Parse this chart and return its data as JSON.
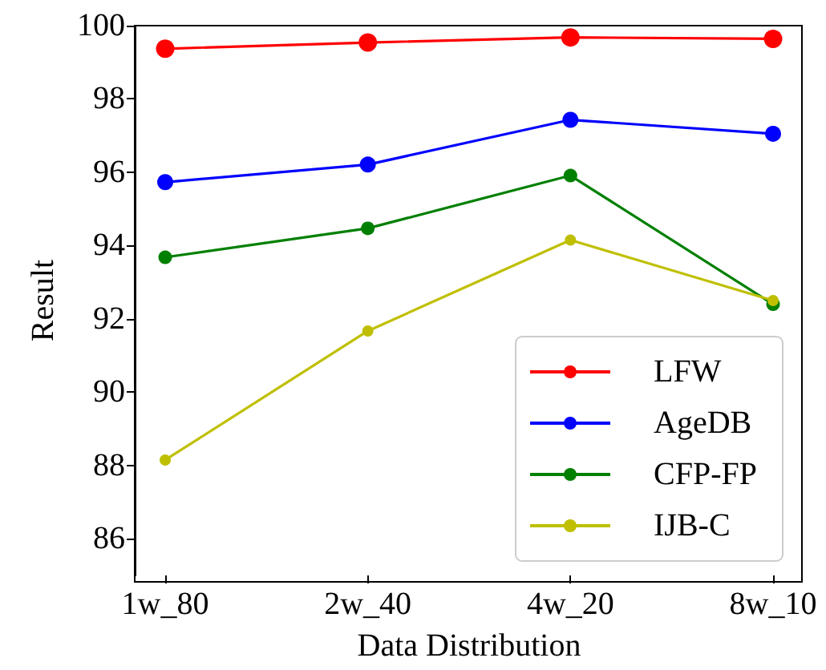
{
  "chart_data": {
    "type": "line",
    "xlabel": "Data Distribution",
    "ylabel": "Result",
    "categories": [
      "1w_80",
      "2w_40",
      "4w_20",
      "8w_10"
    ],
    "series": [
      {
        "name": "LFW",
        "color": "#ff0000",
        "values": [
          99.37,
          99.54,
          99.68,
          99.64
        ]
      },
      {
        "name": "AgeDB",
        "color": "#0000ff",
        "values": [
          95.73,
          96.21,
          97.43,
          97.05
        ]
      },
      {
        "name": "CFP-FP",
        "color": "#008000",
        "values": [
          93.68,
          94.47,
          95.91,
          92.4
        ]
      },
      {
        "name": "IJB-C",
        "color": "#bfbf00",
        "values": [
          88.15,
          91.67,
          94.15,
          92.5
        ]
      }
    ],
    "ylim": [
      85,
      100
    ],
    "yticks": [
      86,
      88,
      90,
      92,
      94,
      96,
      98,
      100
    ],
    "grid": false,
    "legend": "bottom right",
    "marker": "circle",
    "line_style": "solid"
  }
}
